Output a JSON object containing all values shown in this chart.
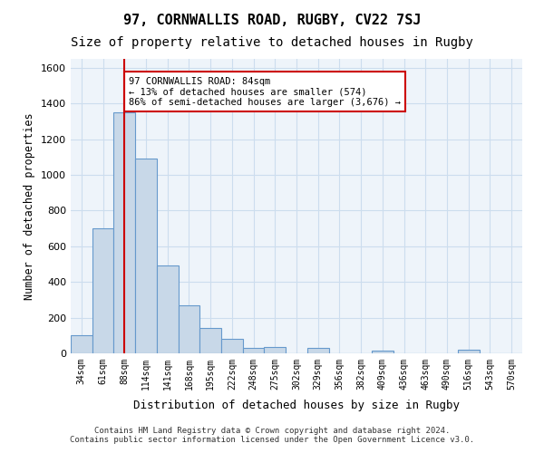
{
  "title_line1": "97, CORNWALLIS ROAD, RUGBY, CV22 7SJ",
  "title_line2": "Size of property relative to detached houses in Rugby",
  "xlabel": "Distribution of detached houses by size in Rugby",
  "ylabel": "Number of detached properties",
  "categories": [
    "34sqm",
    "61sqm",
    "88sqm",
    "114sqm",
    "141sqm",
    "168sqm",
    "195sqm",
    "222sqm",
    "248sqm",
    "275sqm",
    "302sqm",
    "329sqm",
    "356sqm",
    "382sqm",
    "409sqm",
    "436sqm",
    "463sqm",
    "490sqm",
    "516sqm",
    "543sqm",
    "570sqm"
  ],
  "values": [
    100,
    700,
    1350,
    1090,
    490,
    270,
    140,
    80,
    30,
    35,
    0,
    30,
    0,
    0,
    15,
    0,
    0,
    0,
    20,
    0,
    0
  ],
  "bar_color": "#c8d8e8",
  "bar_edge_color": "#6699cc",
  "highlight_index": 2,
  "red_line_index": 2,
  "annotation_text": "97 CORNWALLIS ROAD: 84sqm\n← 13% of detached houses are smaller (574)\n86% of semi-detached houses are larger (3,676) →",
  "annotation_box_color": "#ffffff",
  "annotation_box_edge": "#cc0000",
  "red_line_color": "#cc0000",
  "ylim": [
    0,
    1650
  ],
  "yticks": [
    0,
    200,
    400,
    600,
    800,
    1000,
    1200,
    1400,
    1600
  ],
  "grid_color": "#ccddee",
  "background_color": "#eef4fa",
  "footer_text": "Contains HM Land Registry data © Crown copyright and database right 2024.\nContains public sector information licensed under the Open Government Licence v3.0.",
  "title_fontsize": 11,
  "subtitle_fontsize": 10,
  "bar_width": 1.0
}
